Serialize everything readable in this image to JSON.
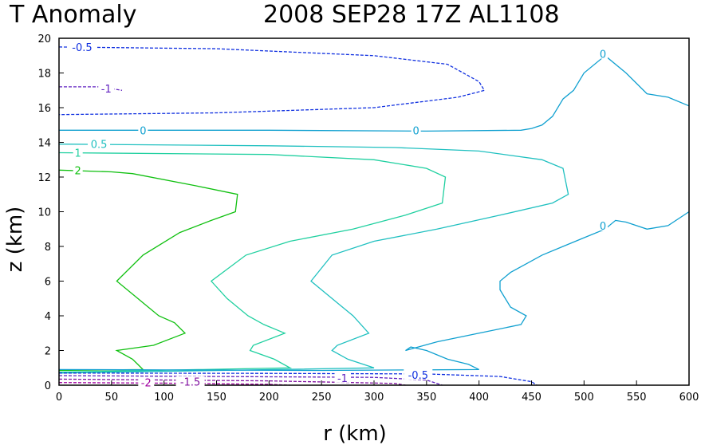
{
  "chart_data": {
    "type": "contour",
    "title_left": "T Anomaly",
    "title_right": "2008 SEP28 17Z   AL1108",
    "xlabel": "r (km)",
    "ylabel": "z (km)",
    "xlim": [
      0,
      600
    ],
    "ylim": [
      0,
      20
    ],
    "xticks": [
      "0",
      "50",
      "100",
      "150",
      "200",
      "250",
      "300",
      "350",
      "400",
      "450",
      "500",
      "550",
      "600"
    ],
    "yticks": [
      "0",
      "2",
      "4",
      "6",
      "8",
      "10",
      "12",
      "14",
      "16",
      "18",
      "20"
    ],
    "contours": [
      {
        "name": "c2",
        "level": 2,
        "color": "#10c010",
        "dashed": false,
        "points": [
          [
            0,
            12.4
          ],
          [
            50,
            12.3
          ],
          [
            70,
            12.2
          ],
          [
            130,
            11.5
          ],
          [
            170,
            11
          ],
          [
            168,
            10
          ],
          [
            145,
            9.5
          ],
          [
            115,
            8.8
          ],
          [
            80,
            7.5
          ],
          [
            55,
            6
          ],
          [
            75,
            5
          ],
          [
            95,
            4
          ],
          [
            110,
            3.6
          ],
          [
            120,
            3
          ],
          [
            90,
            2.3
          ],
          [
            55,
            2
          ],
          [
            70,
            1.5
          ],
          [
            75,
            1.2
          ],
          [
            80,
            0.9
          ],
          [
            0,
            0.85
          ]
        ]
      },
      {
        "name": "c1",
        "level": 1,
        "color": "#20d0a0",
        "dashed": false,
        "points": [
          [
            0,
            13.4
          ],
          [
            200,
            13.3
          ],
          [
            300,
            13
          ],
          [
            350,
            12.5
          ],
          [
            368,
            12
          ],
          [
            365,
            10.5
          ],
          [
            330,
            9.8
          ],
          [
            280,
            9
          ],
          [
            220,
            8.3
          ],
          [
            178,
            7.5
          ],
          [
            145,
            6
          ],
          [
            160,
            5
          ],
          [
            180,
            4
          ],
          [
            195,
            3.5
          ],
          [
            215,
            3
          ],
          [
            185,
            2.3
          ],
          [
            182,
            2
          ],
          [
            205,
            1.5
          ],
          [
            220,
            1
          ],
          [
            0,
            0.75
          ]
        ]
      },
      {
        "name": "c0p5",
        "level": 0.5,
        "color": "#20c0c0",
        "dashed": false,
        "points": [
          [
            0,
            13.9
          ],
          [
            200,
            13.8
          ],
          [
            320,
            13.7
          ],
          [
            400,
            13.5
          ],
          [
            460,
            13
          ],
          [
            480,
            12.5
          ],
          [
            485,
            11
          ],
          [
            470,
            10.5
          ],
          [
            420,
            9.8
          ],
          [
            360,
            9
          ],
          [
            300,
            8.3
          ],
          [
            260,
            7.5
          ],
          [
            240,
            6
          ],
          [
            260,
            5
          ],
          [
            280,
            4
          ],
          [
            295,
            3
          ],
          [
            265,
            2.3
          ],
          [
            260,
            2
          ],
          [
            275,
            1.5
          ],
          [
            300,
            1
          ],
          [
            0,
            0.7
          ]
        ]
      },
      {
        "name": "c0_mid",
        "level": 0,
        "color": "#10a0d0",
        "dashed": false,
        "points": [
          [
            0,
            14.7
          ],
          [
            200,
            14.7
          ],
          [
            350,
            14.65
          ],
          [
            440,
            14.7
          ],
          [
            450,
            14.8
          ],
          [
            460,
            15
          ],
          [
            470,
            15.5
          ],
          [
            480,
            16.5
          ],
          [
            490,
            17
          ],
          [
            500,
            18
          ],
          [
            520,
            19
          ],
          [
            540,
            18
          ],
          [
            560,
            16.8
          ],
          [
            580,
            16.6
          ],
          [
            600,
            16.1
          ]
        ]
      },
      {
        "name": "c0_low",
        "level": 0,
        "color": "#10a0d0",
        "dashed": false,
        "points": [
          [
            0,
            0.9
          ],
          [
            250,
            0.85
          ],
          [
            400,
            0.9
          ],
          [
            390,
            1.2
          ],
          [
            370,
            1.5
          ],
          [
            350,
            2
          ],
          [
            335,
            2.2
          ],
          [
            330,
            2
          ],
          [
            360,
            2.5
          ],
          [
            400,
            3
          ],
          [
            440,
            3.5
          ],
          [
            445,
            4
          ],
          [
            430,
            4.5
          ],
          [
            420,
            5.5
          ],
          [
            420,
            6
          ],
          [
            430,
            6.5
          ],
          [
            445,
            7
          ],
          [
            460,
            7.5
          ],
          [
            480,
            8
          ],
          [
            500,
            8.5
          ],
          [
            520,
            9
          ],
          [
            530,
            9.5
          ],
          [
            540,
            9.4
          ],
          [
            560,
            9
          ],
          [
            580,
            9.2
          ],
          [
            600,
            10
          ]
        ]
      },
      {
        "name": "cm0p5_top",
        "level": -0.5,
        "color": "#1030e0",
        "dashed": true,
        "points": [
          [
            0,
            19.5
          ],
          [
            150,
            19.4
          ],
          [
            300,
            19
          ],
          [
            370,
            18.5
          ],
          [
            400,
            17.5
          ],
          [
            405,
            17
          ],
          [
            380,
            16.6
          ],
          [
            300,
            16
          ],
          [
            150,
            15.7
          ],
          [
            0,
            15.6
          ]
        ]
      },
      {
        "name": "cm0p5_low",
        "level": -0.5,
        "color": "#1030e0",
        "dashed": true,
        "points": [
          [
            0,
            0.7
          ],
          [
            200,
            0.68
          ],
          [
            350,
            0.65
          ],
          [
            420,
            0.5
          ],
          [
            450,
            0.2
          ],
          [
            455,
            0
          ]
        ]
      },
      {
        "name": "cm1_top",
        "level": -1,
        "color": "#6020c0",
        "dashed": true,
        "points": [
          [
            0,
            17.2
          ],
          [
            40,
            17.2
          ],
          [
            60,
            17
          ]
        ]
      },
      {
        "name": "cm1_low",
        "level": -1,
        "color": "#6020c0",
        "dashed": true,
        "points": [
          [
            0,
            0.55
          ],
          [
            150,
            0.5
          ],
          [
            300,
            0.45
          ],
          [
            350,
            0.3
          ],
          [
            365,
            0
          ]
        ]
      },
      {
        "name": "cm1p5",
        "level": -1.5,
        "color": "#8010a0",
        "dashed": true,
        "points": [
          [
            0,
            0.35
          ],
          [
            100,
            0.3
          ],
          [
            200,
            0.25
          ],
          [
            320,
            0.1
          ],
          [
            330,
            0
          ]
        ]
      },
      {
        "name": "cm2",
        "level": -2,
        "color": "#a000a0",
        "dashed": true,
        "points": [
          [
            0,
            0.15
          ],
          [
            100,
            0.12
          ],
          [
            200,
            0.05
          ],
          [
            220,
            0
          ]
        ]
      }
    ],
    "contour_labels": [
      {
        "text": "-0.5",
        "x": 22,
        "y": 19.5,
        "color": "#1030e0"
      },
      {
        "text": "-1",
        "x": 45,
        "y": 17.1,
        "color": "#6020c0"
      },
      {
        "text": "0",
        "x": 80,
        "y": 14.7,
        "color": "#10a0d0"
      },
      {
        "text": "0",
        "x": 340,
        "y": 14.7,
        "color": "#10a0d0"
      },
      {
        "text": "0.5",
        "x": 38,
        "y": 13.9,
        "color": "#20c0c0"
      },
      {
        "text": "1",
        "x": 18,
        "y": 13.4,
        "color": "#20d0a0"
      },
      {
        "text": "2",
        "x": 18,
        "y": 12.4,
        "color": "#10c010"
      },
      {
        "text": "0",
        "x": 518,
        "y": 19.1,
        "color": "#10a0d0"
      },
      {
        "text": "0",
        "x": 518,
        "y": 9.2,
        "color": "#10a0d0"
      },
      {
        "text": "-0.5",
        "x": 342,
        "y": 0.6,
        "color": "#1030e0"
      },
      {
        "text": "-1",
        "x": 270,
        "y": 0.42,
        "color": "#6020c0"
      },
      {
        "text": "-1.5",
        "x": 125,
        "y": 0.2,
        "color": "#8010a0"
      },
      {
        "text": "-2",
        "x": 83,
        "y": 0.15,
        "color": "#a000a0"
      }
    ]
  }
}
